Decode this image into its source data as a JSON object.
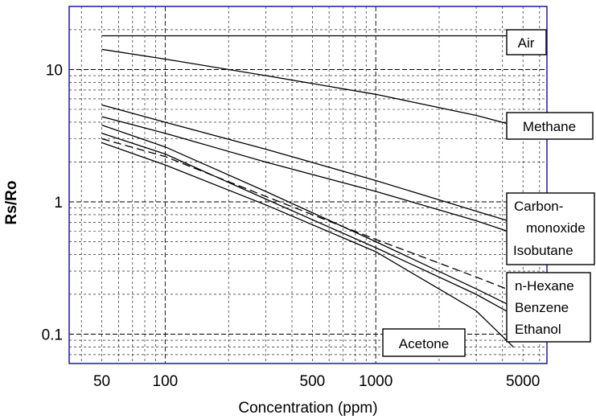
{
  "chart_data": {
    "type": "line",
    "x_scale": "log",
    "y_scale": "log",
    "xlabel": "Concentration (ppm)",
    "ylabel": "Rs/Ro",
    "xlim": [
      35,
      6500
    ],
    "ylim": [
      0.06,
      30
    ],
    "x_ticks": [
      {
        "value": 50,
        "label": "50"
      },
      {
        "value": 100,
        "label": "100"
      },
      {
        "value": 500,
        "label": "500"
      },
      {
        "value": 1000,
        "label": "1000"
      },
      {
        "value": 5000,
        "label": "5000"
      }
    ],
    "y_ticks": [
      {
        "value": 0.1,
        "label": "0.1"
      },
      {
        "value": 1,
        "label": "1"
      },
      {
        "value": 10,
        "label": "10"
      }
    ],
    "grid": true,
    "frame_color": "#1a1aa8",
    "series": [
      {
        "name": "Air",
        "dash": "solid",
        "x": [
          50,
          4500
        ],
        "y": [
          18,
          18
        ]
      },
      {
        "name": "Methane",
        "dash": "solid",
        "x": [
          50,
          100,
          300,
          1000,
          3000,
          4500
        ],
        "y": [
          14.2,
          12.0,
          9.0,
          6.5,
          4.5,
          3.8
        ]
      },
      {
        "name": "Carbon-monoxide",
        "dash": "solid",
        "x": [
          50,
          100,
          300,
          1000,
          3000,
          4500
        ],
        "y": [
          5.4,
          4.0,
          2.5,
          1.45,
          0.85,
          0.7
        ]
      },
      {
        "name": "Isobutane",
        "dash": "solid",
        "x": [
          50,
          100,
          300,
          1000,
          3000,
          4500
        ],
        "y": [
          4.4,
          3.3,
          2.0,
          1.2,
          0.72,
          0.58
        ]
      },
      {
        "name": "n-Hexane",
        "dash": "dashed",
        "x": [
          50,
          100,
          300,
          1000,
          3000,
          4500
        ],
        "y": [
          3.0,
          2.2,
          1.1,
          0.52,
          0.27,
          0.21
        ]
      },
      {
        "name": "Benzene",
        "dash": "solid",
        "x": [
          50,
          100,
          300,
          1000,
          3000,
          4500
        ],
        "y": [
          3.8,
          2.6,
          1.2,
          0.5,
          0.22,
          0.16
        ]
      },
      {
        "name": "Ethanol",
        "dash": "solid",
        "x": [
          50,
          100,
          300,
          1000,
          3000,
          4500
        ],
        "y": [
          3.3,
          2.3,
          1.05,
          0.45,
          0.2,
          0.14
        ]
      },
      {
        "name": "Acetone",
        "dash": "solid",
        "x": [
          50,
          100,
          300,
          1000,
          3000,
          4500
        ],
        "y": [
          2.8,
          1.9,
          0.95,
          0.42,
          0.15,
          0.08
        ]
      }
    ],
    "labels": [
      "Air",
      "Methane",
      "Carbon-",
      "monoxide",
      "Isobutane",
      "n-Hexane",
      "Benzene",
      "Ethanol",
      "Acetone"
    ]
  }
}
